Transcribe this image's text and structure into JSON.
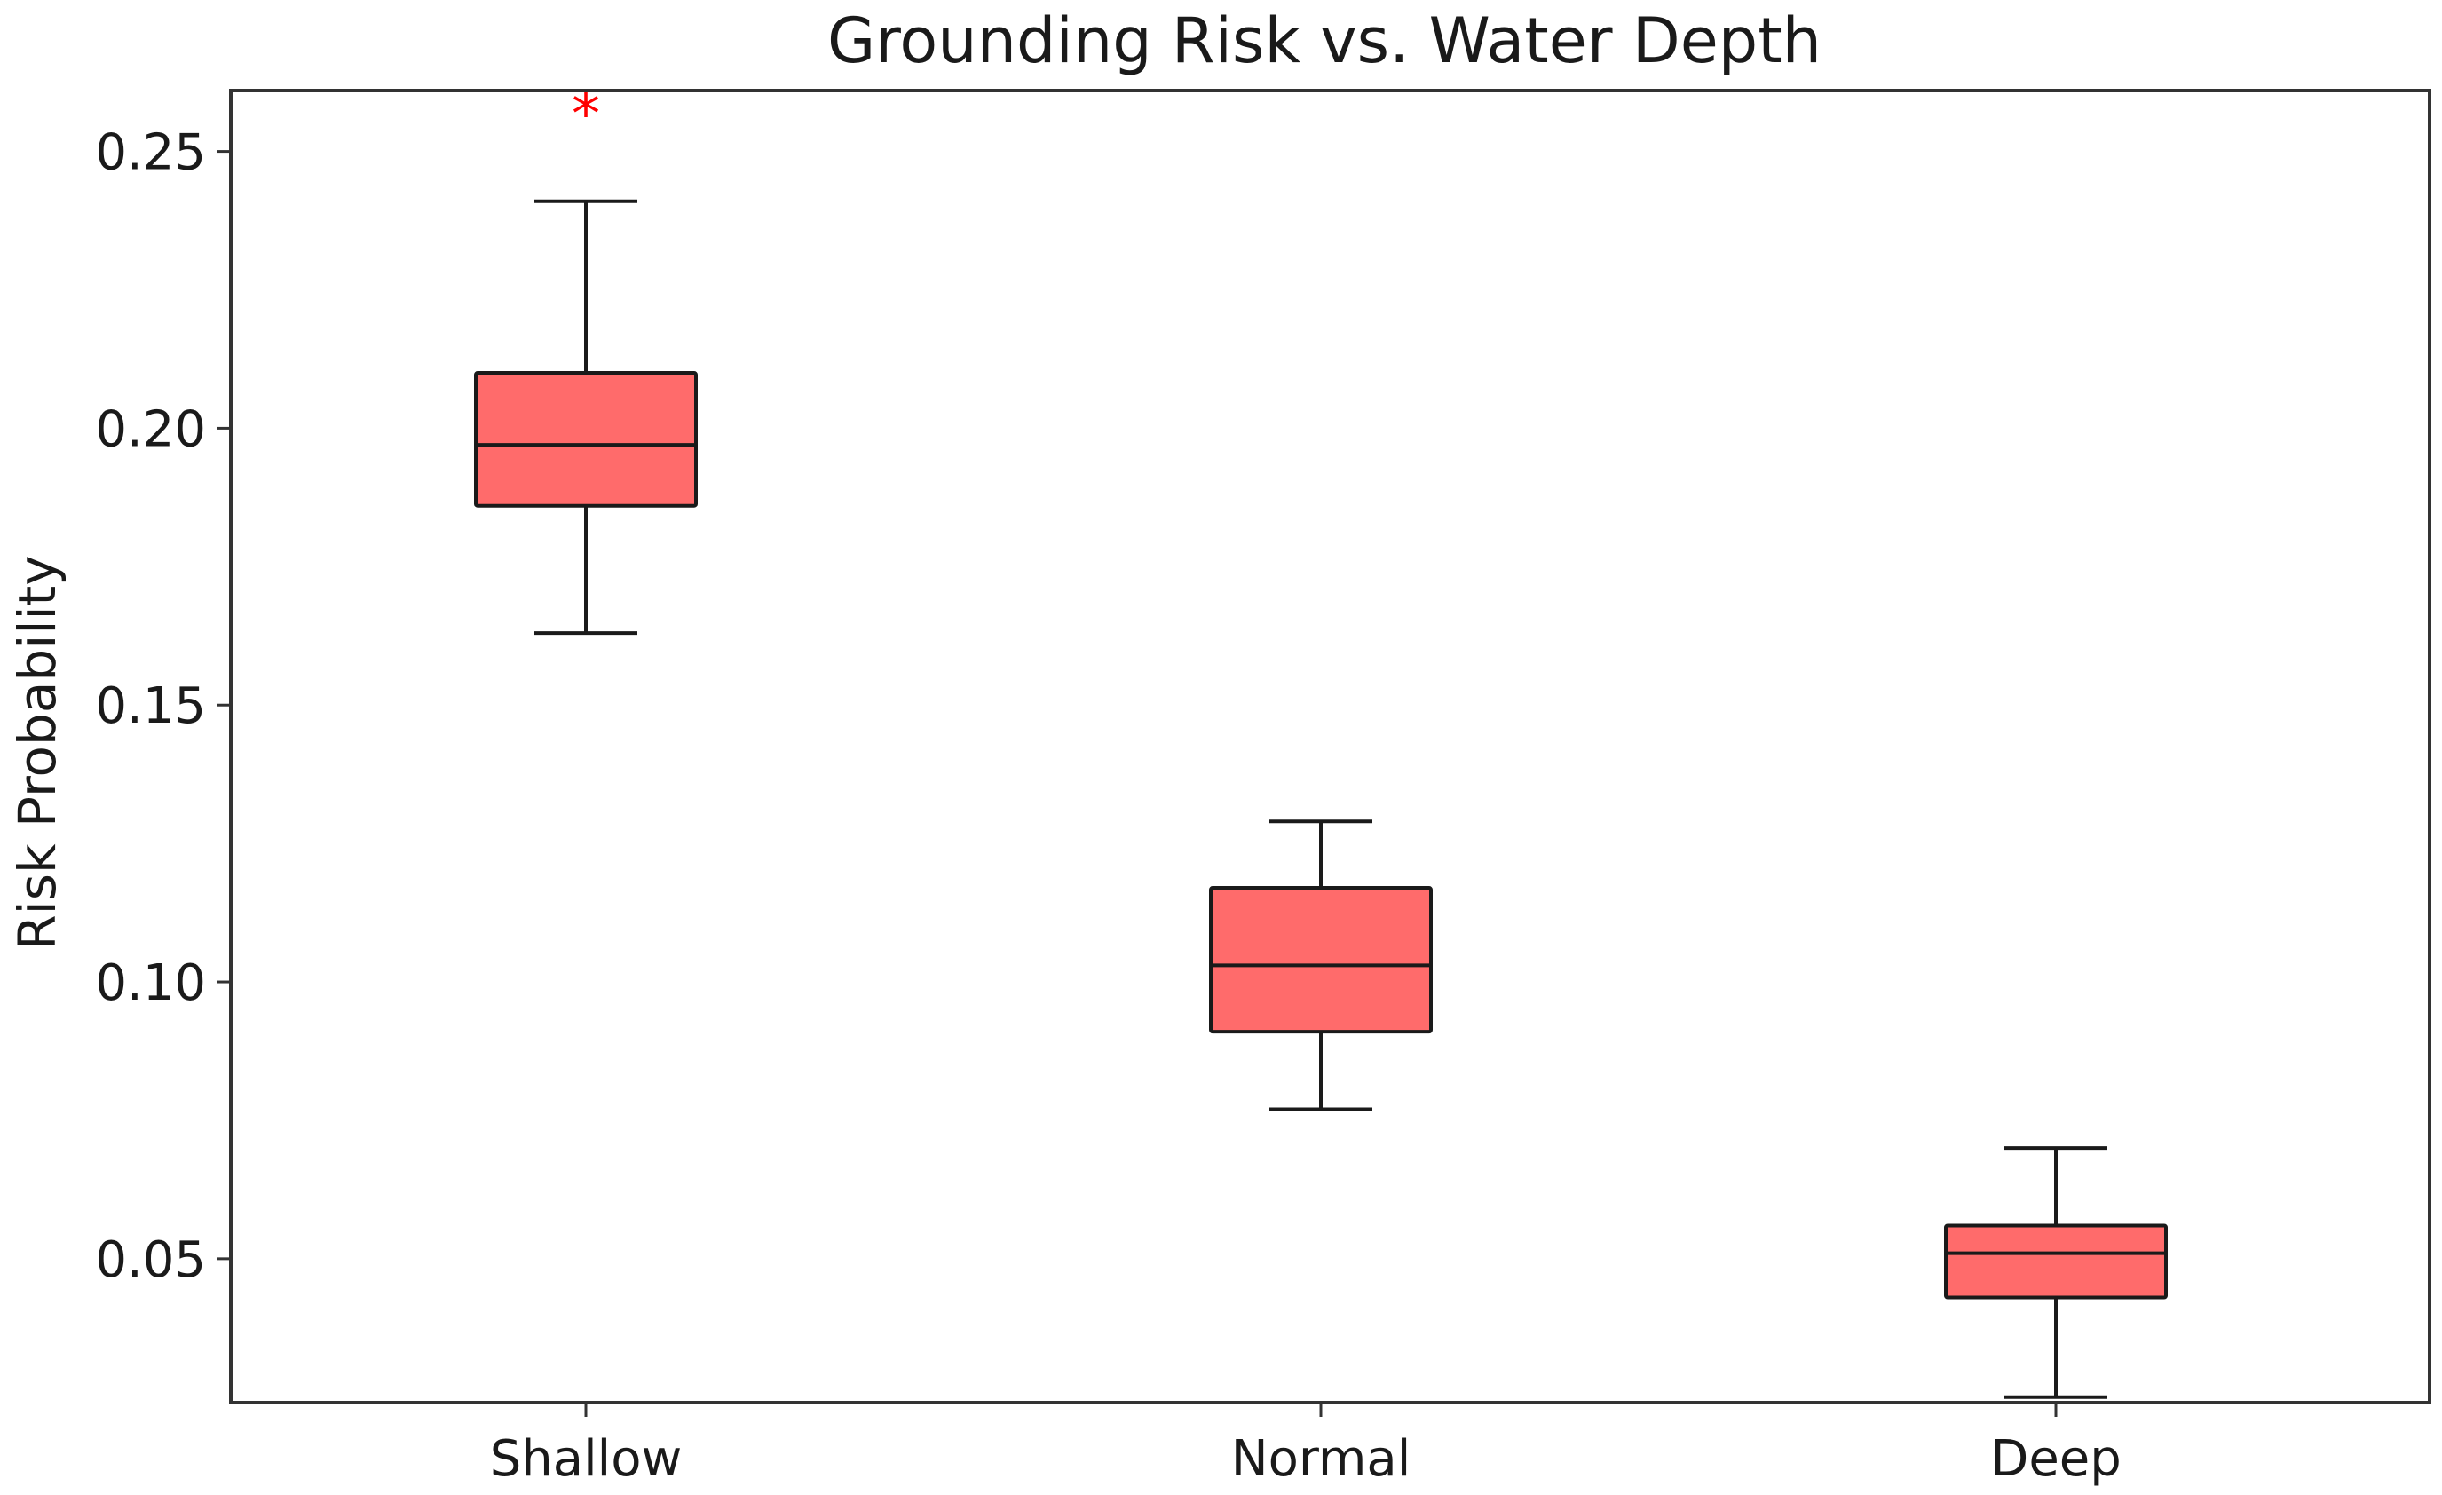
{
  "chart_data": {
    "type": "box",
    "title": "Grounding Risk vs. Water Depth",
    "xlabel": "",
    "ylabel": "Risk Probability",
    "ylim": [
      0.024,
      0.261
    ],
    "yticks": [
      0.05,
      0.1,
      0.15,
      0.2,
      0.25
    ],
    "ytick_labels": [
      "0.05",
      "0.10",
      "0.15",
      "0.20",
      "0.25"
    ],
    "categories": [
      "Shallow",
      "Normal",
      "Deep"
    ],
    "boxes": [
      {
        "category": "Shallow",
        "whisker_low": 0.163,
        "q1": 0.186,
        "median": 0.197,
        "q3": 0.21,
        "whisker_high": 0.241,
        "outliers": [
          0.258
        ]
      },
      {
        "category": "Normal",
        "whisker_low": 0.077,
        "q1": 0.091,
        "median": 0.103,
        "q3": 0.117,
        "whisker_high": 0.129,
        "outliers": []
      },
      {
        "category": "Deep",
        "whisker_low": 0.025,
        "q1": 0.043,
        "median": 0.051,
        "q3": 0.056,
        "whisker_high": 0.07,
        "outliers": []
      }
    ],
    "box_color": "#ff6b6b",
    "edge_color": "#1a1a1a",
    "outlier_color": "#ff0000",
    "outlier_marker": "*",
    "grid": false
  }
}
